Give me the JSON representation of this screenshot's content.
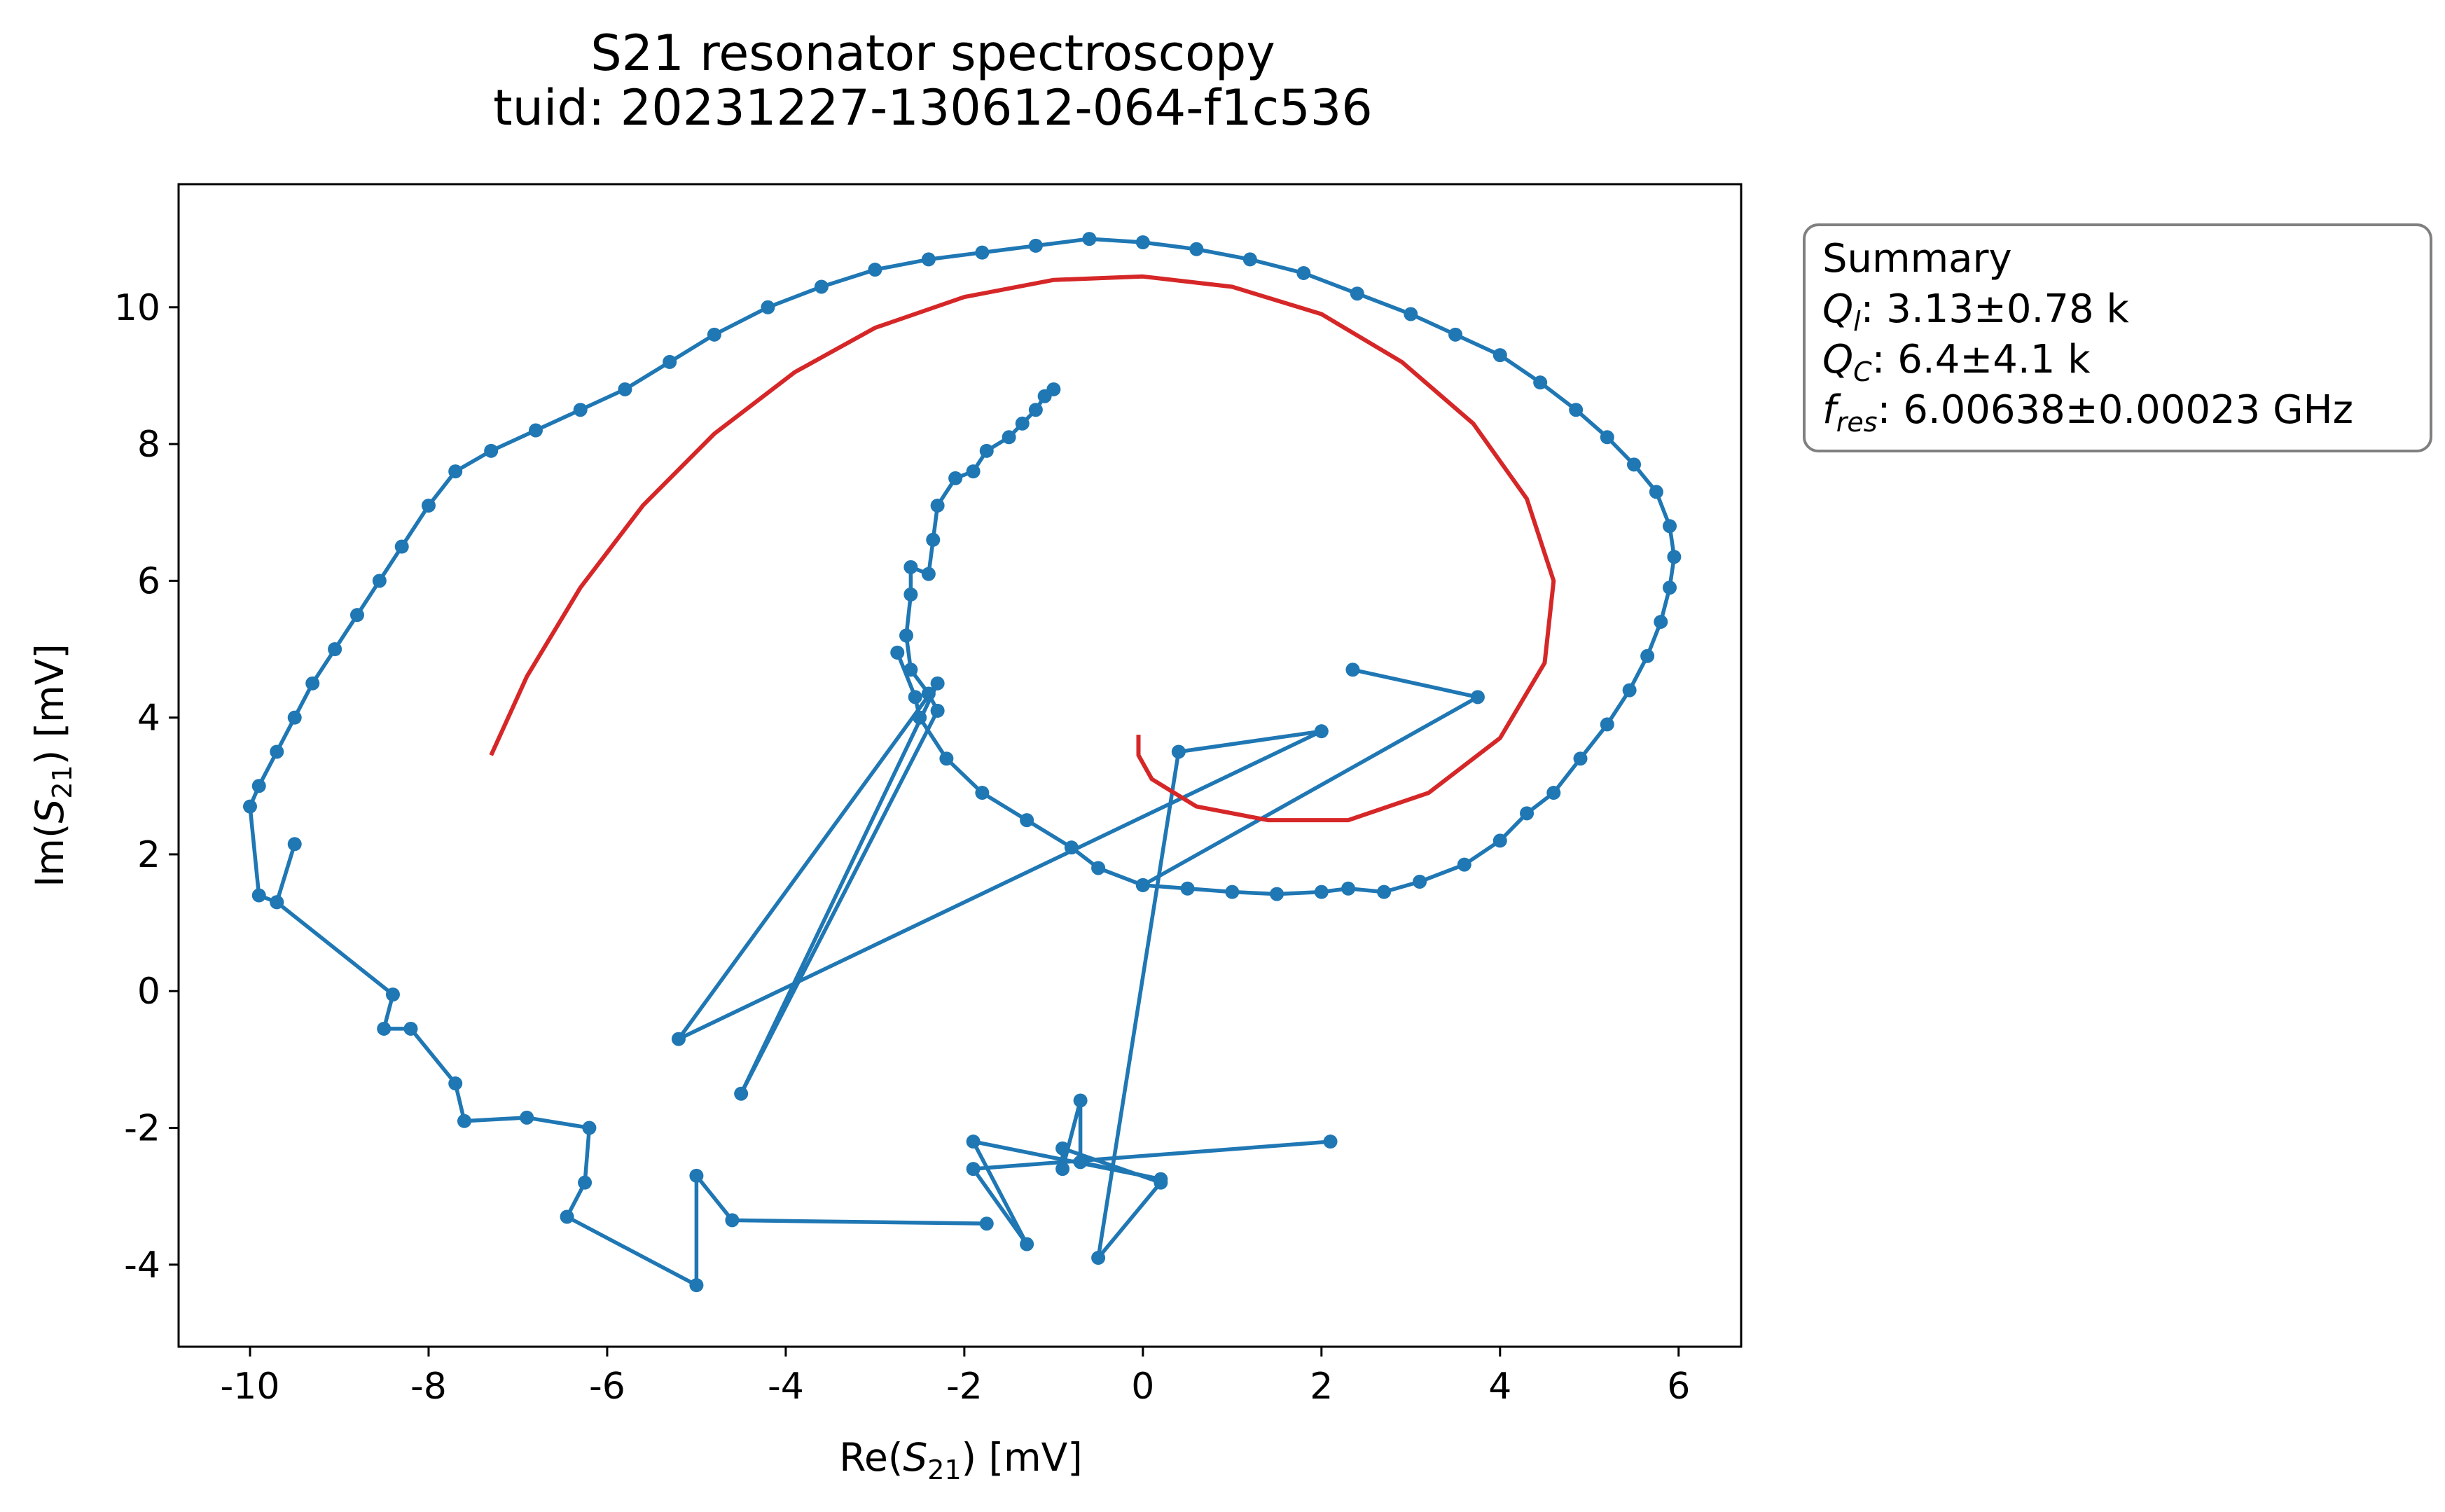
{
  "chart_data": {
    "type": "line",
    "title": "S21 resonator spectroscopy",
    "subtitle": "tuid: 20231227-130612-064-f1c536",
    "xlabel": {
      "base": "Re(",
      "var": "S",
      "sub": "21",
      "tail": ") [mV]"
    },
    "ylabel": {
      "base": "Im(",
      "var": "S",
      "sub": "21",
      "tail": ") [mV]"
    },
    "xlim": [
      -10.8,
      6.7
    ],
    "ylim": [
      -5.2,
      11.8
    ],
    "xticks": [
      -10,
      -8,
      -6,
      -4,
      -2,
      0,
      2,
      4,
      6
    ],
    "yticks": [
      -4,
      -2,
      0,
      2,
      4,
      6,
      8,
      10
    ],
    "grid": false,
    "series": [
      {
        "color": "#1f77b4",
        "marker": "circle",
        "points": [
          [
            2.1,
            -2.2
          ],
          [
            -1.9,
            -2.6
          ],
          [
            -1.3,
            -3.7
          ],
          [
            -1.9,
            -2.2
          ],
          [
            0.2,
            -2.75
          ],
          [
            -0.7,
            -2.5
          ],
          [
            -0.7,
            -1.6
          ],
          [
            -0.9,
            -2.6
          ],
          [
            -0.9,
            -2.3
          ],
          [
            0.2,
            -2.8
          ],
          [
            -0.5,
            -3.9
          ],
          [
            0.4,
            3.5
          ],
          [
            2.0,
            3.8
          ],
          [
            -5.2,
            -0.7
          ],
          [
            -2.3,
            4.5
          ],
          [
            -4.5,
            -1.5
          ],
          [
            -2.3,
            4.1
          ],
          [
            -2.4,
            4.35
          ],
          [
            -2.6,
            4.7
          ],
          [
            -2.65,
            5.2
          ],
          [
            -2.6,
            5.8
          ],
          [
            -2.6,
            6.2
          ],
          [
            -2.4,
            6.1
          ],
          [
            -2.35,
            6.6
          ],
          [
            -2.3,
            7.1
          ],
          [
            -2.1,
            7.5
          ],
          [
            -1.9,
            7.6
          ],
          [
            -1.75,
            7.9
          ],
          [
            -1.5,
            8.1
          ],
          [
            -1.35,
            8.3
          ],
          [
            -1.2,
            8.5
          ],
          [
            -1.1,
            8.7
          ],
          [
            -1.0,
            8.8
          ]
        ]
      },
      {
        "color": "#1f77b4",
        "marker": "circle",
        "points": [
          [
            2.35,
            4.7
          ],
          [
            3.75,
            4.3
          ],
          [
            0.0,
            1.55
          ],
          [
            -0.5,
            1.8
          ],
          [
            -0.8,
            2.1
          ],
          [
            -1.3,
            2.5
          ],
          [
            -1.8,
            2.9
          ],
          [
            -2.2,
            3.4
          ],
          [
            -2.5,
            4.0
          ],
          [
            -2.55,
            4.3
          ],
          [
            -2.75,
            4.95
          ]
        ]
      },
      {
        "color": "#1f77b4",
        "marker": "circle",
        "points": [
          [
            0.0,
            1.55
          ],
          [
            0.5,
            1.5
          ],
          [
            1.0,
            1.45
          ],
          [
            1.5,
            1.42
          ],
          [
            2.0,
            1.45
          ],
          [
            2.3,
            1.5
          ],
          [
            2.7,
            1.45
          ],
          [
            3.1,
            1.6
          ],
          [
            3.6,
            1.85
          ],
          [
            4.0,
            2.2
          ],
          [
            4.3,
            2.6
          ],
          [
            4.6,
            2.9
          ],
          [
            4.9,
            3.4
          ],
          [
            5.2,
            3.9
          ],
          [
            5.45,
            4.4
          ],
          [
            5.65,
            4.9
          ],
          [
            5.8,
            5.4
          ],
          [
            5.9,
            5.9
          ],
          [
            5.95,
            6.35
          ],
          [
            5.9,
            6.8
          ],
          [
            5.75,
            7.3
          ],
          [
            5.5,
            7.7
          ],
          [
            5.2,
            8.1
          ],
          [
            4.85,
            8.5
          ],
          [
            4.45,
            8.9
          ],
          [
            4.0,
            9.3
          ],
          [
            3.5,
            9.6
          ],
          [
            3.0,
            9.9
          ],
          [
            2.4,
            10.2
          ],
          [
            1.8,
            10.5
          ],
          [
            1.2,
            10.7
          ],
          [
            0.6,
            10.85
          ],
          [
            0.0,
            10.95
          ],
          [
            -0.6,
            11.0
          ],
          [
            -1.2,
            10.9
          ],
          [
            -1.8,
            10.8
          ],
          [
            -2.4,
            10.7
          ],
          [
            -3.0,
            10.55
          ],
          [
            -3.6,
            10.3
          ],
          [
            -4.2,
            10.0
          ],
          [
            -4.8,
            9.6
          ],
          [
            -5.3,
            9.2
          ],
          [
            -5.8,
            8.8
          ],
          [
            -6.3,
            8.5
          ],
          [
            -6.8,
            8.2
          ],
          [
            -7.3,
            7.9
          ],
          [
            -7.7,
            7.6
          ],
          [
            -8.0,
            7.1
          ],
          [
            -8.3,
            6.5
          ],
          [
            -8.55,
            6.0
          ],
          [
            -8.8,
            5.5
          ],
          [
            -9.05,
            5.0
          ],
          [
            -9.3,
            4.5
          ],
          [
            -9.5,
            4.0
          ],
          [
            -9.7,
            3.5
          ],
          [
            -9.9,
            3.0
          ],
          [
            -10.0,
            2.7
          ],
          [
            -9.9,
            1.4
          ],
          [
            -9.7,
            1.3
          ],
          [
            -9.5,
            2.15
          ],
          [
            -9.7,
            1.3
          ],
          [
            -8.4,
            -0.05
          ],
          [
            -8.5,
            -0.55
          ],
          [
            -8.2,
            -0.55
          ],
          [
            -7.7,
            -1.35
          ],
          [
            -7.6,
            -1.9
          ],
          [
            -6.9,
            -1.85
          ],
          [
            -6.2,
            -2.0
          ],
          [
            -6.25,
            -2.8
          ],
          [
            -6.45,
            -3.3
          ],
          [
            -5.0,
            -4.3
          ],
          [
            -5.0,
            -2.7
          ],
          [
            -4.6,
            -3.35
          ],
          [
            -1.75,
            -3.4
          ]
        ]
      },
      {
        "color": "#d62728",
        "marker": "none",
        "description": "fit",
        "points": [
          [
            -7.3,
            3.45
          ],
          [
            -6.9,
            4.6
          ],
          [
            -6.3,
            5.9
          ],
          [
            -5.6,
            7.1
          ],
          [
            -4.8,
            8.15
          ],
          [
            -3.9,
            9.05
          ],
          [
            -3.0,
            9.7
          ],
          [
            -2.0,
            10.15
          ],
          [
            -1.0,
            10.4
          ],
          [
            0.0,
            10.45
          ],
          [
            1.0,
            10.3
          ],
          [
            2.0,
            9.9
          ],
          [
            2.9,
            9.2
          ],
          [
            3.7,
            8.3
          ],
          [
            4.3,
            7.2
          ],
          [
            4.6,
            6.0
          ],
          [
            4.5,
            4.8
          ],
          [
            4.0,
            3.7
          ],
          [
            3.2,
            2.9
          ],
          [
            2.3,
            2.5
          ],
          [
            1.4,
            2.5
          ],
          [
            0.6,
            2.7
          ],
          [
            0.1,
            3.1
          ],
          [
            -0.05,
            3.45
          ],
          [
            -0.05,
            3.75
          ]
        ]
      }
    ],
    "legend": {
      "placement": "outside-right-top",
      "title": "Summary",
      "entries": [
        {
          "var": "Q",
          "sub": "l",
          "value": ": 3.13±0.78 k"
        },
        {
          "var": "Q",
          "sub": "C",
          "value": ": 6.4±4.1 k"
        },
        {
          "var": "f",
          "sub": "res",
          "value": ": 6.00638±0.00023 GHz"
        }
      ]
    }
  }
}
